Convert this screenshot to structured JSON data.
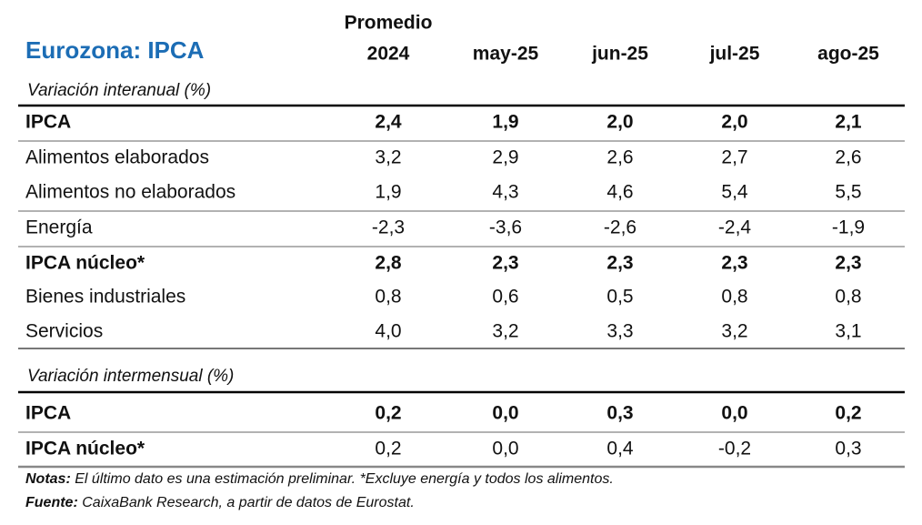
{
  "title": "Eurozona: IPCA",
  "columns": [
    [
      "Promedio",
      "2024"
    ],
    [
      "may-25"
    ],
    [
      "jun-25"
    ],
    [
      "jul-25"
    ],
    [
      "ago-25"
    ]
  ],
  "sections": [
    {
      "label": "Variación interanual (%)",
      "rows": [
        {
          "label": "IPCA",
          "bold_label": true,
          "bold_values": true,
          "values": [
            "2,4",
            "1,9",
            "2,0",
            "2,0",
            "2,1"
          ]
        },
        {
          "label": "Alimentos elaborados",
          "bold_label": false,
          "bold_values": false,
          "values": [
            "3,2",
            "2,9",
            "2,6",
            "2,7",
            "2,6"
          ]
        },
        {
          "label": "Alimentos no elaborados",
          "bold_label": false,
          "bold_values": false,
          "values": [
            "1,9",
            "4,3",
            "4,6",
            "5,4",
            "5,5"
          ]
        },
        {
          "label": "Energía",
          "bold_label": false,
          "bold_values": false,
          "values": [
            "-2,3",
            "-3,6",
            "-2,6",
            "-2,4",
            "-1,9"
          ]
        },
        {
          "label": "IPCA núcleo*",
          "bold_label": true,
          "bold_values": true,
          "values": [
            "2,8",
            "2,3",
            "2,3",
            "2,3",
            "2,3"
          ]
        },
        {
          "label": "Bienes industriales",
          "bold_label": false,
          "bold_values": false,
          "values": [
            "0,8",
            "0,6",
            "0,5",
            "0,8",
            "0,8"
          ]
        },
        {
          "label": "Servicios",
          "bold_label": false,
          "bold_values": false,
          "values": [
            "4,0",
            "3,2",
            "3,3",
            "3,2",
            "3,1"
          ]
        }
      ]
    },
    {
      "label": "Variación intermensual (%)",
      "rows": [
        {
          "label": "IPCA",
          "bold_label": true,
          "bold_values": true,
          "values": [
            "0,2",
            "0,0",
            "0,3",
            "0,0",
            "0,2"
          ]
        },
        {
          "label": "IPCA núcleo*",
          "bold_label": true,
          "bold_values": false,
          "values": [
            "0,2",
            "0,0",
            "0,4",
            "-0,2",
            "0,3"
          ]
        }
      ]
    }
  ],
  "notes": {
    "label": "Notas:",
    "text": "El último dato es una estimación preliminar. *Excluye energía y todos los alimentos."
  },
  "source": {
    "label": "Fuente:",
    "text": "CaixaBank Research, a partir de datos de Eurostat."
  }
}
